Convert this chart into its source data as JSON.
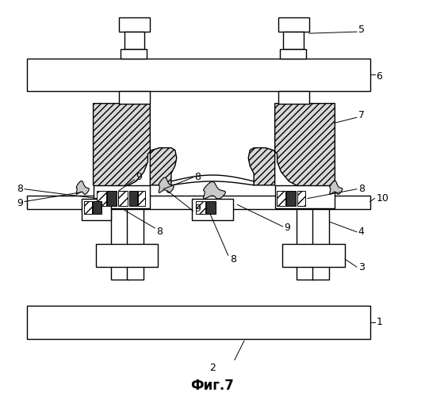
{
  "title": "Фиг.7",
  "bg_color": "#ffffff",
  "line_color": "#000000",
  "fig_width": 5.36,
  "fig_height": 5.0,
  "dpi": 100
}
